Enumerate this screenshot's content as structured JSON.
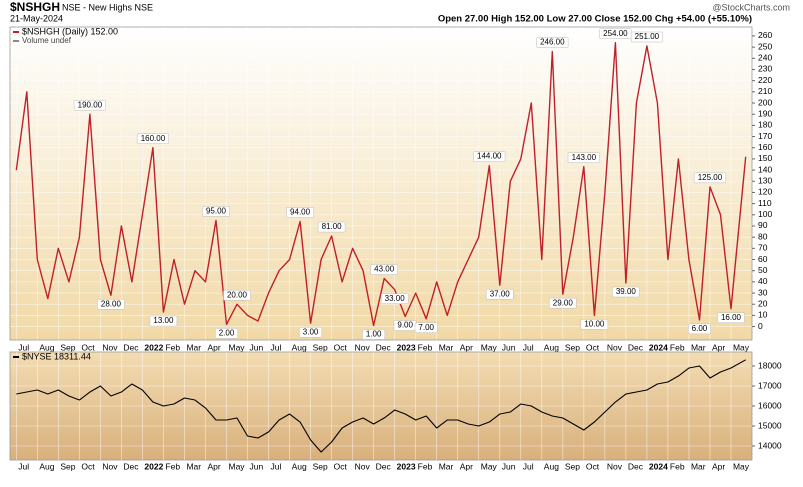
{
  "header": {
    "symbol": "$NSHGH",
    "title": "NSE - New Highs NSE",
    "date": "21-May-2024",
    "source": "@StockCharts.com",
    "quote": "Open 27.00 High 152.00 Low 27.00 Close 152.00 Chg +54.00 (+55.10%)"
  },
  "chart_data": [
    {
      "type": "line",
      "legend": [
        "$NSHGH (Daily) 152.00",
        "Volume undef"
      ],
      "x": [
        0,
        0.5,
        1,
        1.5,
        2,
        2.5,
        3,
        3.5,
        4,
        4.5,
        5,
        5.5,
        6,
        6.5,
        7,
        7.5,
        8,
        8.5,
        9,
        9.5,
        10,
        10.5,
        11,
        11.5,
        12,
        12.5,
        13,
        13.5,
        14,
        14.5,
        15,
        15.5,
        16,
        16.5,
        17,
        17.5,
        18,
        18.5,
        19,
        19.5,
        20,
        20.5,
        21,
        21.5,
        22,
        22.5,
        23,
        23.5,
        24,
        24.5,
        25,
        25.5,
        26,
        26.5,
        27,
        27.5,
        28,
        28.5,
        29,
        29.5,
        30,
        30.5,
        31,
        31.5,
        32,
        32.5,
        33,
        33.5,
        34,
        34.7
      ],
      "series": [
        {
          "name": "$NSHGH",
          "color": "#c0202a",
          "values": [
            140,
            210,
            60,
            25,
            70,
            40,
            80,
            190,
            60,
            28,
            90,
            40,
            100,
            160,
            13,
            60,
            20,
            50,
            40,
            95,
            2,
            20,
            10,
            5,
            30,
            50,
            60,
            94,
            3,
            60,
            81,
            40,
            70,
            50,
            1,
            43,
            33,
            9,
            30,
            7,
            40,
            10,
            40,
            60,
            80,
            144,
            37,
            130,
            150,
            200,
            60,
            246,
            29,
            80,
            143,
            10,
            120,
            254,
            39,
            200,
            251,
            200,
            60,
            150,
            60,
            6,
            125,
            100,
            16,
            152
          ]
        }
      ],
      "annotations": [
        {
          "x": 3.5,
          "value": 190,
          "label": "190.00"
        },
        {
          "x": 4.5,
          "value": 28,
          "label": "28.00"
        },
        {
          "x": 6.5,
          "value": 160,
          "label": "160.00"
        },
        {
          "x": 7,
          "value": 13,
          "label": "13.00"
        },
        {
          "x": 9.5,
          "value": 95,
          "label": "95.00"
        },
        {
          "x": 10,
          "value": 2,
          "label": "2.00"
        },
        {
          "x": 10.5,
          "value": 20,
          "label": "20.00"
        },
        {
          "x": 13.5,
          "value": 94,
          "label": "94.00"
        },
        {
          "x": 14,
          "value": 3,
          "label": "3.00"
        },
        {
          "x": 15,
          "value": 81,
          "label": "81.00"
        },
        {
          "x": 17,
          "value": 1,
          "label": "1.00"
        },
        {
          "x": 17.5,
          "value": 43,
          "label": "43.00"
        },
        {
          "x": 18,
          "value": 33,
          "label": "33.00"
        },
        {
          "x": 18.5,
          "value": 9,
          "label": "9.00"
        },
        {
          "x": 19.5,
          "value": 7,
          "label": "7.00"
        },
        {
          "x": 22.5,
          "value": 144,
          "label": "144.00"
        },
        {
          "x": 23,
          "value": 37,
          "label": "37.00"
        },
        {
          "x": 25.5,
          "value": 246,
          "label": "246.00"
        },
        {
          "x": 26,
          "value": 29,
          "label": "29.00"
        },
        {
          "x": 27,
          "value": 143,
          "label": "143.00"
        },
        {
          "x": 27.5,
          "value": 10,
          "label": "10.00"
        },
        {
          "x": 28.5,
          "value": 254,
          "label": "254.00"
        },
        {
          "x": 29,
          "value": 39,
          "label": "39.00"
        },
        {
          "x": 30,
          "value": 251,
          "label": "251.00"
        },
        {
          "x": 32.5,
          "value": 6,
          "label": "6.00"
        },
        {
          "x": 33,
          "value": 125,
          "label": "125.00"
        },
        {
          "x": 34,
          "value": 16,
          "label": "16.00"
        }
      ],
      "xlim": [
        -0.3,
        35.0
      ],
      "xticks": [
        {
          "value": 0,
          "label": "Jul"
        },
        {
          "value": 1,
          "label": "Aug"
        },
        {
          "value": 2,
          "label": "Sep"
        },
        {
          "value": 3,
          "label": "Oct"
        },
        {
          "value": 4,
          "label": "Nov"
        },
        {
          "value": 5,
          "label": "Dec"
        },
        {
          "value": 6,
          "label": "2022"
        },
        {
          "value": 7,
          "label": "Feb"
        },
        {
          "value": 8,
          "label": "Mar"
        },
        {
          "value": 9,
          "label": "Apr"
        },
        {
          "value": 10,
          "label": "May"
        },
        {
          "value": 11,
          "label": "Jun"
        },
        {
          "value": 12,
          "label": "Jul"
        },
        {
          "value": 13,
          "label": "Aug"
        },
        {
          "value": 14,
          "label": "Sep"
        },
        {
          "value": 15,
          "label": "Oct"
        },
        {
          "value": 16,
          "label": "Nov"
        },
        {
          "value": 17,
          "label": "Dec"
        },
        {
          "value": 18,
          "label": "2023"
        },
        {
          "value": 19,
          "label": "Feb"
        },
        {
          "value": 20,
          "label": "Mar"
        },
        {
          "value": 21,
          "label": "Apr"
        },
        {
          "value": 22,
          "label": "May"
        },
        {
          "value": 23,
          "label": "Jun"
        },
        {
          "value": 24,
          "label": "Jul"
        },
        {
          "value": 25,
          "label": "Aug"
        },
        {
          "value": 26,
          "label": "Sep"
        },
        {
          "value": 27,
          "label": "Oct"
        },
        {
          "value": 28,
          "label": "Nov"
        },
        {
          "value": 29,
          "label": "Dec"
        },
        {
          "value": 30,
          "label": "2024"
        },
        {
          "value": 31,
          "label": "Feb"
        },
        {
          "value": 32,
          "label": "Mar"
        },
        {
          "value": 33,
          "label": "Apr"
        },
        {
          "value": 34,
          "label": "May"
        }
      ],
      "ylim": [
        -12,
        268
      ],
      "yticks": [
        0,
        10,
        20,
        30,
        40,
        50,
        60,
        70,
        80,
        90,
        100,
        110,
        120,
        130,
        140,
        150,
        160,
        170,
        180,
        190,
        200,
        210,
        220,
        230,
        240,
        250,
        260
      ],
      "grid": true
    },
    {
      "type": "line",
      "legend": [
        "$NYSE 18311.44"
      ],
      "x": [
        0,
        0.5,
        1,
        1.5,
        2,
        2.5,
        3,
        3.5,
        4,
        4.5,
        5,
        5.5,
        6,
        6.5,
        7,
        7.5,
        8,
        8.5,
        9,
        9.5,
        10,
        10.5,
        11,
        11.5,
        12,
        12.5,
        13,
        13.5,
        14,
        14.5,
        15,
        15.5,
        16,
        16.5,
        17,
        17.5,
        18,
        18.5,
        19,
        19.5,
        20,
        20.5,
        21,
        21.5,
        22,
        22.5,
        23,
        23.5,
        24,
        24.5,
        25,
        25.5,
        26,
        26.5,
        27,
        27.5,
        28,
        28.5,
        29,
        29.5,
        30,
        30.5,
        31,
        31.5,
        32,
        32.5,
        33,
        33.5,
        34,
        34.7
      ],
      "series": [
        {
          "name": "$NYSE",
          "color": "#000000",
          "values": [
            16600,
            16700,
            16800,
            16600,
            16800,
            16500,
            16300,
            16700,
            17000,
            16500,
            16700,
            17100,
            16800,
            16200,
            16000,
            16100,
            16400,
            16300,
            15900,
            15300,
            15300,
            15400,
            14500,
            14400,
            14700,
            15300,
            15600,
            15200,
            14300,
            13700,
            14200,
            14900,
            15200,
            15400,
            15100,
            15400,
            15800,
            15600,
            15300,
            15500,
            14900,
            15300,
            15300,
            15100,
            15000,
            15200,
            15600,
            15700,
            16100,
            16000,
            15700,
            15500,
            15400,
            15100,
            14800,
            15200,
            15700,
            16200,
            16600,
            16700,
            16800,
            17100,
            17200,
            17500,
            17900,
            18000,
            17400,
            17700,
            17900,
            18311.44
          ]
        }
      ],
      "xlim": [
        -0.3,
        35.0
      ],
      "xticks": [
        {
          "value": 0,
          "label": "Jul"
        },
        {
          "value": 1,
          "label": "Aug"
        },
        {
          "value": 2,
          "label": "Sep"
        },
        {
          "value": 3,
          "label": "Oct"
        },
        {
          "value": 4,
          "label": "Nov"
        },
        {
          "value": 5,
          "label": "Dec"
        },
        {
          "value": 6,
          "label": "2022"
        },
        {
          "value": 7,
          "label": "Feb"
        },
        {
          "value": 8,
          "label": "Mar"
        },
        {
          "value": 9,
          "label": "Apr"
        },
        {
          "value": 10,
          "label": "May"
        },
        {
          "value": 11,
          "label": "Jun"
        },
        {
          "value": 12,
          "label": "Jul"
        },
        {
          "value": 13,
          "label": "Aug"
        },
        {
          "value": 14,
          "label": "Sep"
        },
        {
          "value": 15,
          "label": "Oct"
        },
        {
          "value": 16,
          "label": "Nov"
        },
        {
          "value": 17,
          "label": "Dec"
        },
        {
          "value": 18,
          "label": "2023"
        },
        {
          "value": 19,
          "label": "Feb"
        },
        {
          "value": 20,
          "label": "Mar"
        },
        {
          "value": 21,
          "label": "Apr"
        },
        {
          "value": 22,
          "label": "May"
        },
        {
          "value": 23,
          "label": "Jun"
        },
        {
          "value": 24,
          "label": "Jul"
        },
        {
          "value": 25,
          "label": "Aug"
        },
        {
          "value": 26,
          "label": "Sep"
        },
        {
          "value": 27,
          "label": "Oct"
        },
        {
          "value": 28,
          "label": "Nov"
        },
        {
          "value": 29,
          "label": "Dec"
        },
        {
          "value": 30,
          "label": "2024"
        },
        {
          "value": 31,
          "label": "Feb"
        },
        {
          "value": 32,
          "label": "Mar"
        },
        {
          "value": 33,
          "label": "Apr"
        },
        {
          "value": 34,
          "label": "May"
        }
      ],
      "ylim": [
        13300,
        18700
      ],
      "yticks": [
        14000,
        15000,
        16000,
        17000,
        18000
      ],
      "grid": true
    }
  ]
}
